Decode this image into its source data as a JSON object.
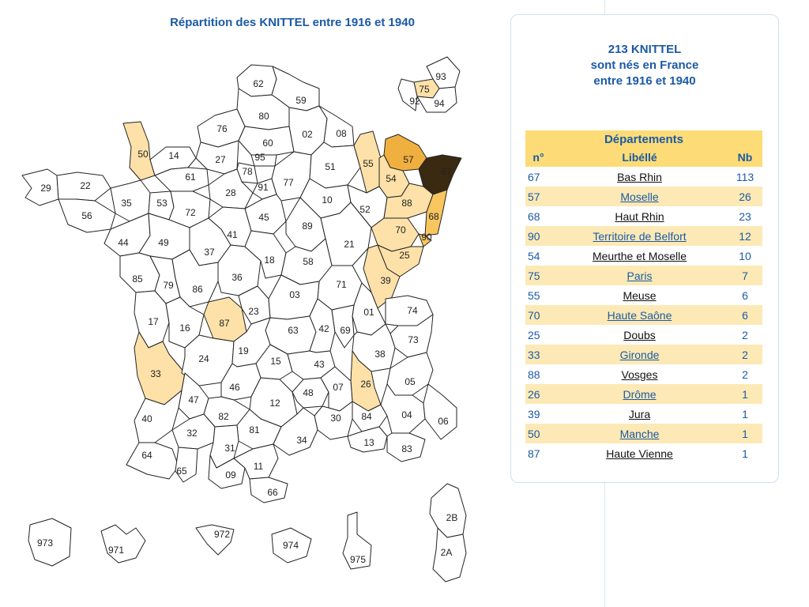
{
  "map": {
    "title": "Répartition des KNITTEL entre 1916 et 1940",
    "colors": {
      "none": "#ffffff",
      "low": "#fde1a8",
      "mid": "#f8c55f",
      "high": "#f0b040",
      "top": "#3a2a12"
    },
    "departments": [
      {
        "code": "62",
        "level": "none"
      },
      {
        "code": "59",
        "level": "none"
      },
      {
        "code": "80",
        "level": "none"
      },
      {
        "code": "02",
        "level": "none"
      },
      {
        "code": "08",
        "level": "none"
      },
      {
        "code": "76",
        "level": "none"
      },
      {
        "code": "60",
        "level": "none"
      },
      {
        "code": "95",
        "level": "none"
      },
      {
        "code": "78",
        "level": "none"
      },
      {
        "code": "91",
        "level": "none"
      },
      {
        "code": "77",
        "level": "none"
      },
      {
        "code": "51",
        "level": "none"
      },
      {
        "code": "55",
        "level": "low"
      },
      {
        "code": "57",
        "level": "high"
      },
      {
        "code": "54",
        "level": "low"
      },
      {
        "code": "67",
        "level": "top"
      },
      {
        "code": "50",
        "level": "low"
      },
      {
        "code": "14",
        "level": "none"
      },
      {
        "code": "27",
        "level": "none"
      },
      {
        "code": "61",
        "level": "none"
      },
      {
        "code": "28",
        "level": "none"
      },
      {
        "code": "29",
        "level": "none"
      },
      {
        "code": "22",
        "level": "none"
      },
      {
        "code": "35",
        "level": "none"
      },
      {
        "code": "53",
        "level": "none"
      },
      {
        "code": "72",
        "level": "none"
      },
      {
        "code": "45",
        "level": "none"
      },
      {
        "code": "10",
        "level": "none"
      },
      {
        "code": "52",
        "level": "none"
      },
      {
        "code": "88",
        "level": "low"
      },
      {
        "code": "68",
        "level": "mid"
      },
      {
        "code": "56",
        "level": "none"
      },
      {
        "code": "44",
        "level": "none"
      },
      {
        "code": "49",
        "level": "none"
      },
      {
        "code": "37",
        "level": "none"
      },
      {
        "code": "41",
        "level": "none"
      },
      {
        "code": "89",
        "level": "none"
      },
      {
        "code": "21",
        "level": "none"
      },
      {
        "code": "70",
        "level": "low"
      },
      {
        "code": "90",
        "level": "mid"
      },
      {
        "code": "25",
        "level": "low"
      },
      {
        "code": "85",
        "level": "none"
      },
      {
        "code": "79",
        "level": "none"
      },
      {
        "code": "86",
        "level": "none"
      },
      {
        "code": "36",
        "level": "none"
      },
      {
        "code": "18",
        "level": "none"
      },
      {
        "code": "58",
        "level": "none"
      },
      {
        "code": "71",
        "level": "none"
      },
      {
        "code": "39",
        "level": "low"
      },
      {
        "code": "17",
        "level": "none"
      },
      {
        "code": "16",
        "level": "none"
      },
      {
        "code": "87",
        "level": "low"
      },
      {
        "code": "23",
        "level": "none"
      },
      {
        "code": "03",
        "level": "none"
      },
      {
        "code": "01",
        "level": "none"
      },
      {
        "code": "74",
        "level": "none"
      },
      {
        "code": "63",
        "level": "none"
      },
      {
        "code": "42",
        "level": "none"
      },
      {
        "code": "69",
        "level": "none"
      },
      {
        "code": "73",
        "level": "none"
      },
      {
        "code": "38",
        "level": "none"
      },
      {
        "code": "33",
        "level": "low"
      },
      {
        "code": "24",
        "level": "none"
      },
      {
        "code": "19",
        "level": "none"
      },
      {
        "code": "15",
        "level": "none"
      },
      {
        "code": "43",
        "level": "none"
      },
      {
        "code": "26",
        "level": "low"
      },
      {
        "code": "05",
        "level": "none"
      },
      {
        "code": "47",
        "level": "none"
      },
      {
        "code": "46",
        "level": "none"
      },
      {
        "code": "12",
        "level": "none"
      },
      {
        "code": "48",
        "level": "none"
      },
      {
        "code": "07",
        "level": "none"
      },
      {
        "code": "40",
        "level": "none"
      },
      {
        "code": "82",
        "level": "none"
      },
      {
        "code": "81",
        "level": "none"
      },
      {
        "code": "30",
        "level": "none"
      },
      {
        "code": "84",
        "level": "none"
      },
      {
        "code": "04",
        "level": "none"
      },
      {
        "code": "06",
        "level": "none"
      },
      {
        "code": "32",
        "level": "none"
      },
      {
        "code": "31",
        "level": "none"
      },
      {
        "code": "34",
        "level": "none"
      },
      {
        "code": "13",
        "level": "none"
      },
      {
        "code": "83",
        "level": "none"
      },
      {
        "code": "64",
        "level": "none"
      },
      {
        "code": "65",
        "level": "none"
      },
      {
        "code": "09",
        "level": "none"
      },
      {
        "code": "11",
        "level": "none"
      },
      {
        "code": "66",
        "level": "none"
      },
      {
        "code": "93",
        "level": "none"
      },
      {
        "code": "75",
        "level": "low"
      },
      {
        "code": "92",
        "level": "none"
      },
      {
        "code": "94",
        "level": "none"
      },
      {
        "code": "973",
        "level": "none"
      },
      {
        "code": "971",
        "level": "none"
      },
      {
        "code": "972",
        "level": "none"
      },
      {
        "code": "974",
        "level": "none"
      },
      {
        "code": "975",
        "level": "none"
      },
      {
        "code": "2B",
        "level": "none"
      },
      {
        "code": "2A",
        "level": "none"
      }
    ]
  },
  "summary": {
    "line1": "213 KNITTEL",
    "line2": "sont nés en France",
    "line3": "entre 1916 et 1940"
  },
  "table": {
    "caption": "Départements",
    "col_num": "n°",
    "col_lib": "Libéllé",
    "col_nb": "Nb",
    "rows": [
      {
        "num": "67",
        "lib": "Bas Rhin",
        "nb": "113",
        "link": false
      },
      {
        "num": "57",
        "lib": "Moselle",
        "nb": "26",
        "link": true
      },
      {
        "num": "68",
        "lib": "Haut Rhin",
        "nb": "23",
        "link": false
      },
      {
        "num": "90",
        "lib": "Territoire de Belfort",
        "nb": "12",
        "link": true
      },
      {
        "num": "54",
        "lib": "Meurthe et Moselle",
        "nb": "10",
        "link": false
      },
      {
        "num": "75",
        "lib": "Paris",
        "nb": "7",
        "link": true
      },
      {
        "num": "55",
        "lib": "Meuse",
        "nb": "6",
        "link": false
      },
      {
        "num": "70",
        "lib": "Haute Saône",
        "nb": "6",
        "link": true
      },
      {
        "num": "25",
        "lib": "Doubs",
        "nb": "2",
        "link": false
      },
      {
        "num": "33",
        "lib": "Gironde",
        "nb": "2",
        "link": true
      },
      {
        "num": "88",
        "lib": "Vosges",
        "nb": "2",
        "link": false
      },
      {
        "num": "26",
        "lib": "Drôme",
        "nb": "1",
        "link": true
      },
      {
        "num": "39",
        "lib": "Jura",
        "nb": "1",
        "link": false
      },
      {
        "num": "50",
        "lib": "Manche",
        "nb": "1",
        "link": true
      },
      {
        "num": "87",
        "lib": "Haute Vienne",
        "nb": "1",
        "link": false
      }
    ]
  }
}
